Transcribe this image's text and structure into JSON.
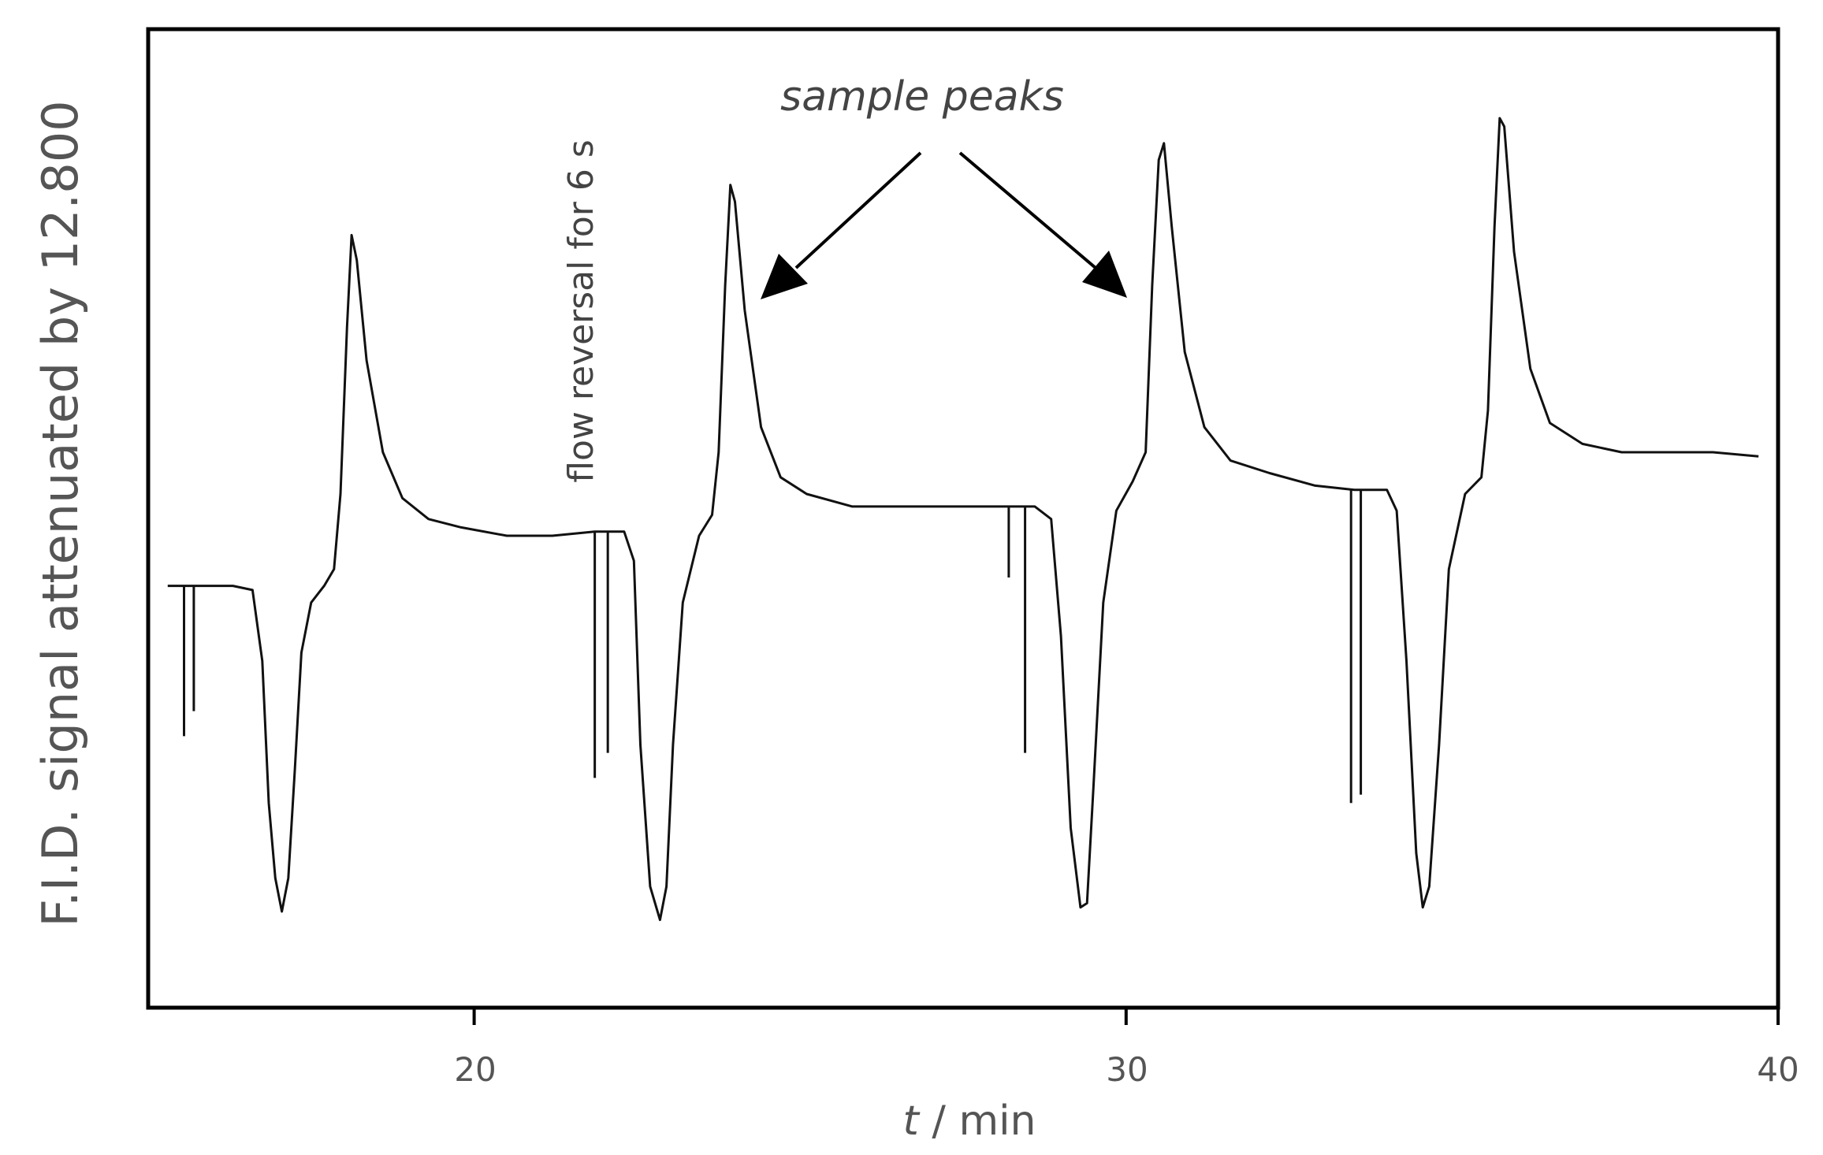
{
  "chart_data": {
    "type": "line",
    "title": "",
    "xlabel_italic": "t",
    "xlabel_rest": " / min",
    "ylabel": "F.I.D. signal attenuated by 12.800",
    "xlim": [
      15,
      40
    ],
    "ylim": [
      0,
      1
    ],
    "x_ticks": [
      20,
      30,
      40
    ],
    "x_tick_labels": [
      "20",
      "30",
      "40"
    ],
    "grid": false,
    "annotations": {
      "sample_peaks": "sample peaks",
      "flow_reversal": "flow reversal for 6 s"
    },
    "series": [
      {
        "points": [
          [
            15.3,
            0.44
          ],
          [
            15.6,
            0.44
          ],
          [
            15.9,
            0.44
          ],
          [
            16.3,
            0.44
          ],
          [
            16.6,
            0.435
          ],
          [
            16.75,
            0.35
          ],
          [
            16.85,
            0.18
          ],
          [
            16.95,
            0.09
          ],
          [
            17.05,
            0.05
          ],
          [
            17.15,
            0.09
          ],
          [
            17.25,
            0.22
          ],
          [
            17.35,
            0.36
          ],
          [
            17.5,
            0.42
          ],
          [
            17.7,
            0.44
          ],
          [
            17.85,
            0.46
          ],
          [
            17.95,
            0.55
          ],
          [
            18.05,
            0.75
          ],
          [
            18.12,
            0.86
          ],
          [
            18.2,
            0.83
          ],
          [
            18.35,
            0.71
          ],
          [
            18.6,
            0.6
          ],
          [
            18.9,
            0.545
          ],
          [
            19.3,
            0.52
          ],
          [
            19.8,
            0.51
          ],
          [
            20.5,
            0.5
          ],
          [
            21.2,
            0.5
          ],
          [
            21.85,
            0.505
          ],
          [
            22.3,
            0.505
          ],
          [
            22.45,
            0.47
          ],
          [
            22.55,
            0.25
          ],
          [
            22.7,
            0.08
          ],
          [
            22.85,
            0.04
          ],
          [
            22.95,
            0.08
          ],
          [
            23.05,
            0.25
          ],
          [
            23.2,
            0.42
          ],
          [
            23.45,
            0.5
          ],
          [
            23.65,
            0.525
          ],
          [
            23.75,
            0.6
          ],
          [
            23.85,
            0.8
          ],
          [
            23.93,
            0.92
          ],
          [
            24.0,
            0.9
          ],
          [
            24.15,
            0.77
          ],
          [
            24.4,
            0.63
          ],
          [
            24.7,
            0.57
          ],
          [
            25.1,
            0.55
          ],
          [
            25.8,
            0.535
          ],
          [
            26.5,
            0.535
          ],
          [
            27.5,
            0.535
          ],
          [
            28.3,
            0.535
          ],
          [
            28.6,
            0.535
          ],
          [
            28.85,
            0.52
          ],
          [
            29.0,
            0.38
          ],
          [
            29.15,
            0.15
          ],
          [
            29.3,
            0.055
          ],
          [
            29.4,
            0.06
          ],
          [
            29.5,
            0.2
          ],
          [
            29.65,
            0.42
          ],
          [
            29.85,
            0.53
          ],
          [
            30.1,
            0.565
          ],
          [
            30.3,
            0.6
          ],
          [
            30.4,
            0.8
          ],
          [
            30.5,
            0.95
          ],
          [
            30.58,
            0.97
          ],
          [
            30.7,
            0.87
          ],
          [
            30.9,
            0.72
          ],
          [
            31.2,
            0.63
          ],
          [
            31.6,
            0.59
          ],
          [
            32.2,
            0.575
          ],
          [
            32.9,
            0.56
          ],
          [
            33.5,
            0.555
          ],
          [
            34.0,
            0.555
          ],
          [
            34.15,
            0.53
          ],
          [
            34.3,
            0.35
          ],
          [
            34.45,
            0.12
          ],
          [
            34.55,
            0.055
          ],
          [
            34.65,
            0.08
          ],
          [
            34.8,
            0.25
          ],
          [
            34.95,
            0.46
          ],
          [
            35.2,
            0.55
          ],
          [
            35.45,
            0.57
          ],
          [
            35.55,
            0.65
          ],
          [
            35.65,
            0.87
          ],
          [
            35.73,
            1.0
          ],
          [
            35.8,
            0.99
          ],
          [
            35.95,
            0.84
          ],
          [
            36.2,
            0.7
          ],
          [
            36.5,
            0.635
          ],
          [
            37.0,
            0.61
          ],
          [
            37.6,
            0.6
          ],
          [
            38.3,
            0.6
          ],
          [
            39.0,
            0.6
          ],
          [
            39.7,
            0.595
          ]
        ]
      }
    ],
    "spikes": [
      {
        "x": 15.55,
        "y_from": 0.44,
        "y_to": 0.26
      },
      {
        "x": 15.7,
        "y_from": 0.44,
        "y_to": 0.29
      },
      {
        "x": 21.85,
        "y_from": 0.505,
        "y_to": 0.21
      },
      {
        "x": 22.05,
        "y_from": 0.505,
        "y_to": 0.24
      },
      {
        "x": 28.2,
        "y_from": 0.535,
        "y_to": 0.45
      },
      {
        "x": 28.45,
        "y_from": 0.535,
        "y_to": 0.24
      },
      {
        "x": 33.45,
        "y_from": 0.555,
        "y_to": 0.18
      },
      {
        "x": 33.6,
        "y_from": 0.555,
        "y_to": 0.19
      }
    ]
  }
}
